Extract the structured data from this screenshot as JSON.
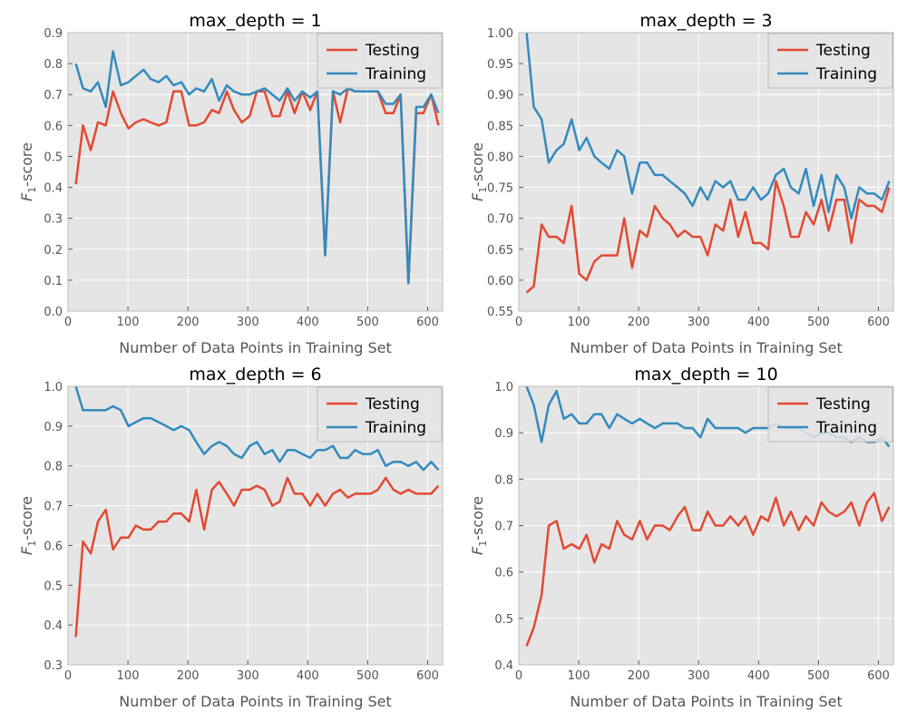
{
  "colors": {
    "testing": "#e24a33",
    "training": "#348abd",
    "plot_bg": "#e5e5e5",
    "grid": "#ffffff"
  },
  "chart_data": [
    {
      "type": "line",
      "title": "max_depth = 1",
      "xlabel": "Number of Data Points in Training Set",
      "ylabel_main": "F",
      "ylabel_sub": "1",
      "ylabel_suffix": "-score",
      "xlim": [
        0,
        625
      ],
      "ylim": [
        0.0,
        0.9
      ],
      "xticks": [
        0,
        100,
        200,
        300,
        400,
        500,
        600
      ],
      "yticks": [
        "0.0",
        "0.1",
        "0.2",
        "0.3",
        "0.4",
        "0.5",
        "0.6",
        "0.7",
        "0.8",
        "0.9"
      ],
      "legend": {
        "position": "top-right",
        "entries": [
          "Testing",
          "Training"
        ]
      },
      "x": [
        13,
        25,
        38,
        50,
        63,
        75,
        88,
        101,
        113,
        126,
        138,
        151,
        164,
        176,
        189,
        202,
        214,
        227,
        240,
        252,
        265,
        277,
        290,
        303,
        315,
        328,
        341,
        353,
        366,
        378,
        391,
        404,
        416,
        429,
        442,
        454,
        467,
        479,
        492,
        505,
        517,
        530,
        543,
        555,
        568,
        581,
        593,
        606,
        618
      ],
      "series": [
        {
          "name": "Testing",
          "values": [
            0.41,
            0.6,
            0.52,
            0.61,
            0.6,
            0.71,
            0.64,
            0.59,
            0.61,
            0.62,
            0.61,
            0.6,
            0.61,
            0.71,
            0.71,
            0.6,
            0.6,
            0.61,
            0.65,
            0.64,
            0.71,
            0.65,
            0.61,
            0.63,
            0.71,
            0.71,
            0.63,
            0.63,
            0.71,
            0.64,
            0.71,
            0.65,
            0.71,
            0.18,
            0.71,
            0.61,
            0.72,
            0.71,
            0.71,
            0.71,
            0.71,
            0.64,
            0.64,
            0.7,
            0.09,
            0.64,
            0.64,
            0.7,
            0.6
          ]
        },
        {
          "name": "Training",
          "values": [
            0.8,
            0.72,
            0.71,
            0.74,
            0.66,
            0.84,
            0.73,
            0.74,
            0.76,
            0.78,
            0.75,
            0.74,
            0.76,
            0.73,
            0.74,
            0.7,
            0.72,
            0.71,
            0.75,
            0.68,
            0.73,
            0.71,
            0.7,
            0.7,
            0.71,
            0.72,
            0.7,
            0.68,
            0.72,
            0.68,
            0.71,
            0.69,
            0.71,
            0.18,
            0.71,
            0.7,
            0.72,
            0.71,
            0.71,
            0.71,
            0.71,
            0.67,
            0.67,
            0.7,
            0.09,
            0.66,
            0.66,
            0.7,
            0.64
          ]
        }
      ]
    },
    {
      "type": "line",
      "title": "max_depth = 3",
      "xlabel": "Number of Data Points in Training Set",
      "ylabel_main": "F",
      "ylabel_sub": "1",
      "ylabel_suffix": "-score",
      "xlim": [
        0,
        625
      ],
      "ylim": [
        0.55,
        1.0
      ],
      "xticks": [
        0,
        100,
        200,
        300,
        400,
        500,
        600
      ],
      "yticks": [
        "0.55",
        "0.60",
        "0.65",
        "0.70",
        "0.75",
        "0.80",
        "0.85",
        "0.90",
        "0.95",
        "1.00"
      ],
      "legend": {
        "position": "top-right",
        "entries": [
          "Testing",
          "Training"
        ]
      },
      "x": [
        13,
        25,
        38,
        50,
        63,
        75,
        88,
        101,
        113,
        126,
        138,
        151,
        164,
        176,
        189,
        202,
        214,
        227,
        240,
        252,
        265,
        277,
        290,
        303,
        315,
        328,
        341,
        353,
        366,
        378,
        391,
        404,
        416,
        429,
        442,
        454,
        467,
        479,
        492,
        505,
        517,
        530,
        543,
        555,
        568,
        581,
        593,
        606,
        618
      ],
      "series": [
        {
          "name": "Testing",
          "values": [
            0.58,
            0.59,
            0.69,
            0.67,
            0.67,
            0.66,
            0.72,
            0.61,
            0.6,
            0.63,
            0.64,
            0.64,
            0.64,
            0.7,
            0.62,
            0.68,
            0.67,
            0.72,
            0.7,
            0.69,
            0.67,
            0.68,
            0.67,
            0.67,
            0.64,
            0.69,
            0.68,
            0.73,
            0.67,
            0.71,
            0.66,
            0.66,
            0.65,
            0.76,
            0.72,
            0.67,
            0.67,
            0.71,
            0.69,
            0.73,
            0.68,
            0.73,
            0.73,
            0.66,
            0.73,
            0.72,
            0.72,
            0.71,
            0.75
          ]
        },
        {
          "name": "Training",
          "values": [
            1.0,
            0.88,
            0.86,
            0.79,
            0.81,
            0.82,
            0.86,
            0.81,
            0.83,
            0.8,
            0.79,
            0.78,
            0.81,
            0.8,
            0.74,
            0.79,
            0.79,
            0.77,
            0.77,
            0.76,
            0.75,
            0.74,
            0.72,
            0.75,
            0.73,
            0.76,
            0.75,
            0.76,
            0.73,
            0.73,
            0.75,
            0.73,
            0.74,
            0.77,
            0.78,
            0.75,
            0.74,
            0.78,
            0.72,
            0.77,
            0.71,
            0.77,
            0.75,
            0.7,
            0.75,
            0.74,
            0.74,
            0.73,
            0.76
          ]
        }
      ]
    },
    {
      "type": "line",
      "title": "max_depth = 6",
      "xlabel": "Number of Data Points in Training Set",
      "ylabel_main": "F",
      "ylabel_sub": "1",
      "ylabel_suffix": "-score",
      "xlim": [
        0,
        625
      ],
      "ylim": [
        0.3,
        1.0
      ],
      "xticks": [
        0,
        100,
        200,
        300,
        400,
        500,
        600
      ],
      "yticks": [
        "0.3",
        "0.4",
        "0.5",
        "0.6",
        "0.7",
        "0.8",
        "0.9",
        "1.0"
      ],
      "legend": {
        "position": "top-right",
        "entries": [
          "Testing",
          "Training"
        ]
      },
      "x": [
        13,
        25,
        38,
        50,
        63,
        75,
        88,
        101,
        113,
        126,
        138,
        151,
        164,
        176,
        189,
        202,
        214,
        227,
        240,
        252,
        265,
        277,
        290,
        303,
        315,
        328,
        341,
        353,
        366,
        378,
        391,
        404,
        416,
        429,
        442,
        454,
        467,
        479,
        492,
        505,
        517,
        530,
        543,
        555,
        568,
        581,
        593,
        606,
        618
      ],
      "series": [
        {
          "name": "Testing",
          "values": [
            0.37,
            0.61,
            0.58,
            0.66,
            0.69,
            0.59,
            0.62,
            0.62,
            0.65,
            0.64,
            0.64,
            0.66,
            0.66,
            0.68,
            0.68,
            0.66,
            0.74,
            0.64,
            0.74,
            0.76,
            0.73,
            0.7,
            0.74,
            0.74,
            0.75,
            0.74,
            0.7,
            0.71,
            0.77,
            0.73,
            0.73,
            0.7,
            0.73,
            0.7,
            0.73,
            0.74,
            0.72,
            0.73,
            0.73,
            0.73,
            0.74,
            0.77,
            0.74,
            0.73,
            0.74,
            0.73,
            0.73,
            0.73,
            0.75
          ]
        },
        {
          "name": "Training",
          "values": [
            1.0,
            0.94,
            0.94,
            0.94,
            0.94,
            0.95,
            0.94,
            0.9,
            0.91,
            0.92,
            0.92,
            0.91,
            0.9,
            0.89,
            0.9,
            0.89,
            0.86,
            0.83,
            0.85,
            0.86,
            0.85,
            0.83,
            0.82,
            0.85,
            0.86,
            0.83,
            0.84,
            0.81,
            0.84,
            0.84,
            0.83,
            0.82,
            0.84,
            0.84,
            0.85,
            0.82,
            0.82,
            0.84,
            0.83,
            0.83,
            0.84,
            0.8,
            0.81,
            0.81,
            0.8,
            0.81,
            0.79,
            0.81,
            0.79
          ]
        }
      ]
    },
    {
      "type": "line",
      "title": "max_depth = 10",
      "xlabel": "Number of Data Points in Training Set",
      "ylabel_main": "F",
      "ylabel_sub": "1",
      "ylabel_suffix": "-score",
      "xlim": [
        0,
        625
      ],
      "ylim": [
        0.4,
        1.0
      ],
      "xticks": [
        0,
        100,
        200,
        300,
        400,
        500,
        600
      ],
      "yticks": [
        "0.4",
        "0.5",
        "0.6",
        "0.7",
        "0.8",
        "0.9",
        "1.0"
      ],
      "legend": {
        "position": "top-right",
        "entries": [
          "Testing",
          "Training"
        ]
      },
      "x": [
        13,
        25,
        38,
        50,
        63,
        75,
        88,
        101,
        113,
        126,
        138,
        151,
        164,
        176,
        189,
        202,
        214,
        227,
        240,
        252,
        265,
        277,
        290,
        303,
        315,
        328,
        341,
        353,
        366,
        378,
        391,
        404,
        416,
        429,
        442,
        454,
        467,
        479,
        492,
        505,
        517,
        530,
        543,
        555,
        568,
        581,
        593,
        606,
        618
      ],
      "series": [
        {
          "name": "Testing",
          "values": [
            0.44,
            0.48,
            0.55,
            0.7,
            0.71,
            0.65,
            0.66,
            0.65,
            0.68,
            0.62,
            0.66,
            0.65,
            0.71,
            0.68,
            0.67,
            0.71,
            0.67,
            0.7,
            0.7,
            0.69,
            0.72,
            0.74,
            0.69,
            0.69,
            0.73,
            0.7,
            0.7,
            0.72,
            0.7,
            0.72,
            0.68,
            0.72,
            0.71,
            0.76,
            0.7,
            0.73,
            0.69,
            0.72,
            0.7,
            0.75,
            0.73,
            0.72,
            0.73,
            0.75,
            0.7,
            0.75,
            0.77,
            0.71,
            0.74
          ]
        },
        {
          "name": "Training",
          "values": [
            1.0,
            0.96,
            0.88,
            0.96,
            0.99,
            0.93,
            0.94,
            0.92,
            0.92,
            0.94,
            0.94,
            0.91,
            0.94,
            0.93,
            0.92,
            0.93,
            0.92,
            0.91,
            0.92,
            0.92,
            0.92,
            0.91,
            0.91,
            0.89,
            0.93,
            0.91,
            0.91,
            0.91,
            0.91,
            0.9,
            0.91,
            0.91,
            0.91,
            0.92,
            0.91,
            0.91,
            0.91,
            0.9,
            0.89,
            0.9,
            0.9,
            0.89,
            0.89,
            0.88,
            0.89,
            0.88,
            0.88,
            0.89,
            0.87
          ]
        }
      ]
    }
  ]
}
